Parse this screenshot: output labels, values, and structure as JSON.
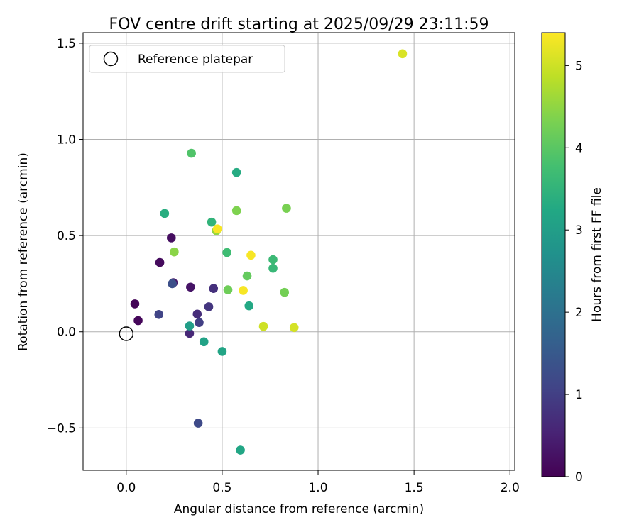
{
  "chart_data": {
    "type": "scatter",
    "title": "FOV centre drift starting at 2025/09/29 23:11:59",
    "xlabel": "Angular distance from reference (arcmin)",
    "ylabel": "Rotation from reference (arcmin)",
    "xlim": [
      -0.225,
      2.025
    ],
    "ylim": [
      -0.72,
      1.555
    ],
    "xticks": [
      0.0,
      0.5,
      1.0,
      1.5,
      2.0
    ],
    "xtick_labels": [
      "0.0",
      "0.5",
      "1.0",
      "1.5",
      "2.0"
    ],
    "yticks": [
      -0.5,
      0.0,
      0.5,
      1.0,
      1.5
    ],
    "ytick_labels": [
      "−0.5",
      "0.0",
      "0.5",
      "1.0",
      "1.5"
    ],
    "grid": true,
    "legend": {
      "position": "top-left",
      "entries": [
        "Reference platepar"
      ]
    },
    "reference_point": {
      "x": 0.0,
      "y": 0.0,
      "label": "Reference platepar"
    },
    "colorbar": {
      "label": "Hours from first FF file",
      "range": [
        0,
        5.4
      ],
      "ticks": [
        0,
        1,
        2,
        3,
        4,
        5
      ],
      "tick_labels": [
        "0",
        "1",
        "2",
        "3",
        "4",
        "5"
      ],
      "colormap": "viridis"
    },
    "points": [
      {
        "x": 0.045,
        "y": 0.145,
        "hours": 0.05
      },
      {
        "x": 0.062,
        "y": 0.058,
        "hours": 0.1
      },
      {
        "x": 0.175,
        "y": 0.36,
        "hours": 0.15
      },
      {
        "x": 0.235,
        "y": 0.488,
        "hours": 0.2
      },
      {
        "x": 0.335,
        "y": 0.232,
        "hours": 0.3
      },
      {
        "x": 0.245,
        "y": 0.255,
        "hours": 0.35
      },
      {
        "x": 0.33,
        "y": -0.008,
        "hours": 0.6
      },
      {
        "x": 0.37,
        "y": 0.092,
        "hours": 0.7
      },
      {
        "x": 0.455,
        "y": 0.225,
        "hours": 0.75
      },
      {
        "x": 0.43,
        "y": 0.13,
        "hours": 0.85
      },
      {
        "x": 0.38,
        "y": 0.048,
        "hours": 1.0
      },
      {
        "x": 0.17,
        "y": 0.09,
        "hours": 1.1
      },
      {
        "x": 0.375,
        "y": -0.475,
        "hours": 1.2
      },
      {
        "x": 0.24,
        "y": 0.25,
        "hours": 1.3
      },
      {
        "x": 0.33,
        "y": 0.03,
        "hours": 3.0
      },
      {
        "x": 0.405,
        "y": -0.052,
        "hours": 3.1
      },
      {
        "x": 0.5,
        "y": -0.102,
        "hours": 3.15
      },
      {
        "x": 0.595,
        "y": -0.615,
        "hours": 3.2
      },
      {
        "x": 0.64,
        "y": 0.135,
        "hours": 3.25
      },
      {
        "x": 0.575,
        "y": 0.828,
        "hours": 3.3
      },
      {
        "x": 0.2,
        "y": 0.615,
        "hours": 3.35
      },
      {
        "x": 0.445,
        "y": 0.57,
        "hours": 3.5
      },
      {
        "x": 0.765,
        "y": 0.33,
        "hours": 3.6
      },
      {
        "x": 0.765,
        "y": 0.375,
        "hours": 3.65
      },
      {
        "x": 0.525,
        "y": 0.412,
        "hours": 3.7
      },
      {
        "x": 0.34,
        "y": 0.928,
        "hours": 3.9
      },
      {
        "x": 0.63,
        "y": 0.29,
        "hours": 4.1
      },
      {
        "x": 0.53,
        "y": 0.218,
        "hours": 4.2
      },
      {
        "x": 0.825,
        "y": 0.205,
        "hours": 4.25
      },
      {
        "x": 0.835,
        "y": 0.642,
        "hours": 4.3
      },
      {
        "x": 0.575,
        "y": 0.63,
        "hours": 4.35
      },
      {
        "x": 0.25,
        "y": 0.415,
        "hours": 4.45
      },
      {
        "x": 0.47,
        "y": 0.525,
        "hours": 4.55
      },
      {
        "x": 0.715,
        "y": 0.028,
        "hours": 5.0
      },
      {
        "x": 0.875,
        "y": 0.022,
        "hours": 5.05
      },
      {
        "x": 1.44,
        "y": 1.445,
        "hours": 5.1
      },
      {
        "x": 0.61,
        "y": 0.215,
        "hours": 5.35
      },
      {
        "x": 0.65,
        "y": 0.398,
        "hours": 5.35
      },
      {
        "x": 0.475,
        "y": 0.535,
        "hours": 5.35
      }
    ]
  }
}
